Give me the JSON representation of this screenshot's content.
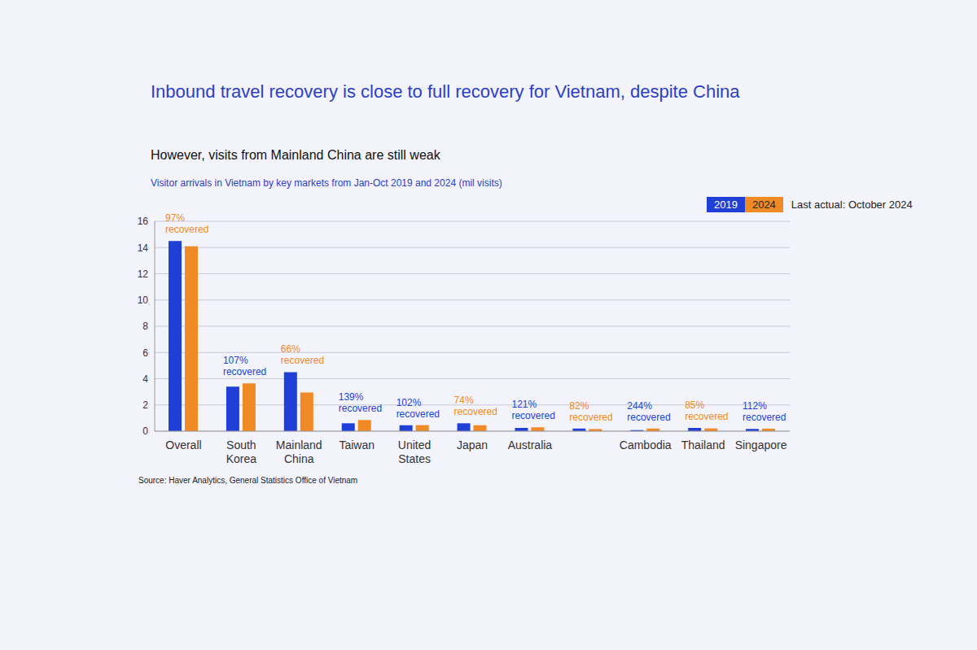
{
  "chart_data": {
    "type": "bar",
    "title": "Inbound travel recovery is close to full recovery for Vietnam, despite China",
    "subtitle": "However, visits from Mainland China are still weak",
    "caption": "Visitor arrivals in Vietnam by key markets from Jan-Oct 2019 and 2024 (mil visits)",
    "note": "Last actual: October 2024",
    "source": "Source: Haver Analytics, General Statistics Office of Vietnam",
    "categories": [
      "Overall",
      "South Korea",
      "Mainland China",
      "Taiwan",
      "United States",
      "Japan",
      "Australia",
      null,
      "Cambodia",
      "Thailand",
      "Singapore"
    ],
    "series": [
      {
        "name": "2019",
        "color": "#1f3fd6",
        "values": [
          14.5,
          3.4,
          4.5,
          0.6,
          0.45,
          0.6,
          0.25,
          0.2,
          0.08,
          0.25,
          0.17
        ]
      },
      {
        "name": "2024",
        "color": "#f08a24",
        "values": [
          14.1,
          3.65,
          2.95,
          0.85,
          0.46,
          0.45,
          0.3,
          0.16,
          0.2,
          0.21,
          0.19
        ]
      }
    ],
    "annotations": [
      "97% recovered",
      "107% recovered",
      "66% recovered",
      "139% recovered",
      "102% recovered",
      "74% recovered",
      "121% recovered",
      "82% recovered",
      "244% recovered",
      "85% recovered",
      "112% recovered"
    ],
    "ylim": [
      0,
      16
    ],
    "yticks": [
      0,
      2,
      4,
      6,
      8,
      10,
      12,
      14,
      16
    ],
    "grid": true,
    "legend": "top-right"
  }
}
